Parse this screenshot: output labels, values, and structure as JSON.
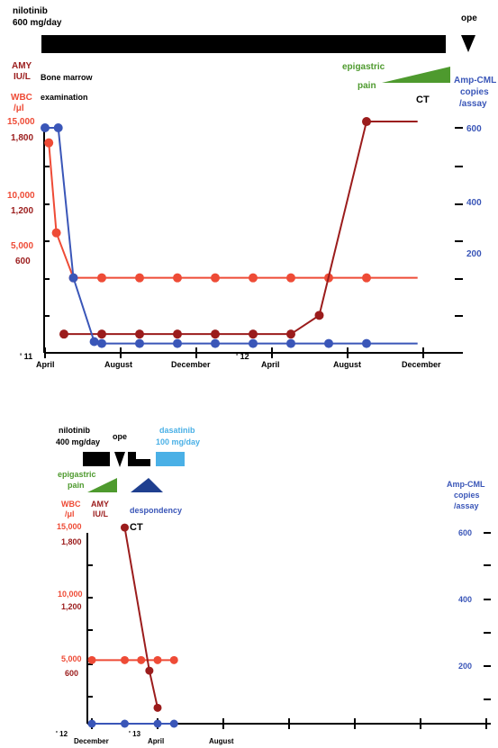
{
  "colors": {
    "wbc": "#ee4b36",
    "amy": "#9b1c1c",
    "cml": "#3a56b8",
    "epigastric": "#4e9a2e",
    "dasatinib": "#4ab0e6",
    "despondency": "#1f3f8f",
    "black": "#000000"
  },
  "chart_data": [
    {
      "type": "line",
      "header": {
        "drug_label_1": "nilotinib",
        "drug_label_2": "600 mg/day",
        "ope_label": "ope",
        "bone_marrow_1": "Bone marrow",
        "bone_marrow_2": "examination",
        "epigastric_1": "epigastric",
        "epigastric_2": "pain",
        "ct_label": "CT"
      },
      "left_axis": {
        "amy_label_1": "AMY",
        "amy_label_2": "IU/L",
        "wbc_label_1": "WBC",
        "wbc_label_2": "/μl",
        "wbc_ticks": [
          "15,000",
          "10,000",
          "5,000"
        ],
        "amy_ticks": [
          "1,800",
          "1,200",
          "600"
        ]
      },
      "right_axis": {
        "label_1": "Amp-CML",
        "label_2": "copies",
        "label_3": "/assay",
        "ticks": [
          "600",
          "400",
          "200"
        ]
      },
      "x_axis": {
        "year_labels": [
          "' 11",
          "' 12"
        ],
        "month_labels": [
          "April",
          "August",
          "December",
          "April",
          "August",
          "December"
        ]
      },
      "series": [
        {
          "key": "wbc",
          "points": [
            [
              0.2,
              14000
            ],
            [
              0.6,
              8000
            ],
            [
              1.5,
              5000
            ],
            [
              3,
              5000
            ],
            [
              5,
              5000
            ],
            [
              7,
              5000
            ],
            [
              9,
              5000
            ],
            [
              11,
              5000
            ],
            [
              13,
              5000
            ],
            [
              15,
              5000
            ],
            [
              17,
              5000
            ],
            [
              19.7,
              5000
            ]
          ]
        },
        {
          "key": "amy",
          "points": [
            [
              1,
              150
            ],
            [
              3,
              150
            ],
            [
              5,
              150
            ],
            [
              7,
              150
            ],
            [
              9,
              150
            ],
            [
              11,
              150
            ],
            [
              13,
              150
            ],
            [
              14.5,
              300
            ],
            [
              17,
              1850
            ],
            [
              19.7,
              1850
            ]
          ]
        },
        {
          "key": "cml",
          "points": [
            [
              0,
              600
            ],
            [
              0.7,
              600
            ],
            [
              1.5,
              200
            ],
            [
              2.6,
              30
            ],
            [
              3,
              25
            ],
            [
              5,
              25
            ],
            [
              7,
              25
            ],
            [
              9,
              25
            ],
            [
              11,
              25
            ],
            [
              13,
              25
            ],
            [
              15,
              25
            ],
            [
              17,
              25
            ],
            [
              19.7,
              25
            ]
          ]
        }
      ]
    },
    {
      "type": "line",
      "header": {
        "drug_label_1": "nilotinib",
        "drug_label_2": "400 mg/day",
        "ope_label": "ope",
        "dasatinib_1": "dasatinib",
        "dasatinib_2": "100 mg/day",
        "epigastric_1": "epigastric",
        "epigastric_2": "pain",
        "despondency": "despondency",
        "ct_label": "CT"
      },
      "left_axis": {
        "amy_label_1": "AMY",
        "amy_label_2": "IU/L",
        "wbc_label_1": "WBC",
        "wbc_label_2": "/μl",
        "wbc_ticks": [
          "15,000",
          "10,000",
          "5,000"
        ],
        "amy_ticks": [
          "1,800",
          "1,200",
          "600"
        ]
      },
      "right_axis": {
        "label_1": "Amp-CML",
        "label_2": "copies",
        "label_3": "/assay",
        "ticks": [
          "600",
          "400",
          "200"
        ]
      },
      "x_axis": {
        "year_labels": [
          "' 12",
          "' 13"
        ],
        "month_labels": [
          "December",
          "April",
          "August"
        ]
      },
      "series": [
        {
          "key": "wbc",
          "points": [
            [
              0,
              5000
            ],
            [
              2,
              5000
            ],
            [
              3,
              5000
            ],
            [
              4,
              5000
            ],
            [
              5,
              5000
            ]
          ]
        },
        {
          "key": "amy",
          "points": [
            [
              2,
              1850
            ],
            [
              3.5,
              500
            ],
            [
              4,
              150
            ]
          ]
        },
        {
          "key": "cml",
          "points": [
            [
              0,
              0
            ],
            [
              2,
              0
            ],
            [
              4,
              0
            ],
            [
              5,
              0
            ]
          ]
        }
      ]
    }
  ]
}
